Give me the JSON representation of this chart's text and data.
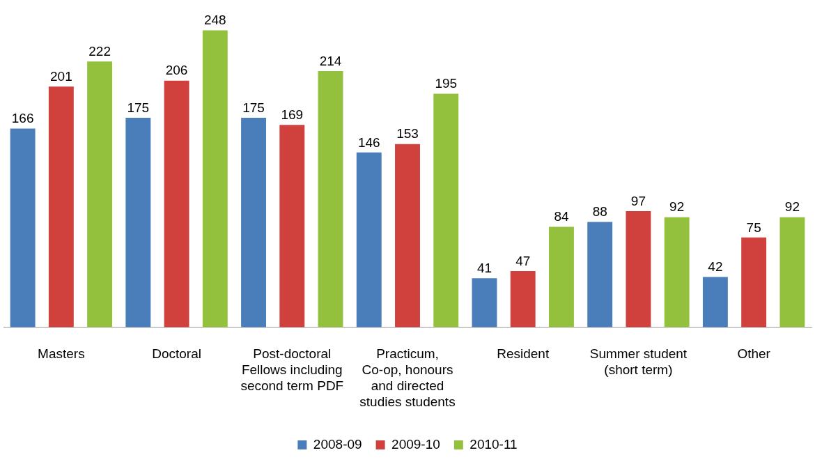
{
  "chart_data": {
    "type": "bar",
    "categories": [
      "Masters",
      "Doctoral",
      "Post-doctoral Fellows including second term PDF",
      "Practicum, Co-op, honours and directed studies students",
      "Resident",
      "Summer student (short term)",
      "Other"
    ],
    "series": [
      {
        "name": "2008-09",
        "color": "#4a7ebb",
        "values": [
          166,
          175,
          175,
          146,
          41,
          88,
          42
        ]
      },
      {
        "name": "2009-10",
        "color": "#d0403c",
        "values": [
          201,
          206,
          169,
          153,
          47,
          97,
          75
        ]
      },
      {
        "name": "2010-11",
        "color": "#93c13e",
        "values": [
          222,
          248,
          214,
          195,
          84,
          92,
          92
        ]
      }
    ],
    "data_labels": true,
    "legend": "bottom",
    "grid": false
  }
}
